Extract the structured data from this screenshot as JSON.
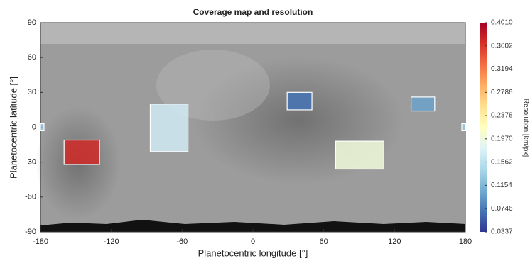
{
  "chart_data": {
    "type": "coverage-map",
    "title": "Coverage map and resolution",
    "xlabel": "Planetocentric longitude [°]",
    "ylabel": "Planetocentric latitude [°]",
    "xlim": [
      -180,
      180
    ],
    "xticks": [
      -180,
      -120,
      -60,
      0,
      60,
      120,
      180
    ],
    "ylim": [
      -90,
      90
    ],
    "yticks": [
      -90,
      -60,
      -30,
      0,
      30,
      60,
      90
    ],
    "colorbar": {
      "label": "Resolution [km/px]",
      "clim": [
        0.0337,
        0.401
      ],
      "ticks": [
        {
          "value": 0.401,
          "label": "0.4010"
        },
        0.3602,
        0.3194,
        0.2786,
        0.2378,
        {
          "value": 0.197,
          "label": "0.1970"
        },
        0.1562,
        0.1154,
        0.0746,
        0.0337
      ],
      "colormap": [
        "#313695",
        "#4575b4",
        "#74add1",
        "#abd9e9",
        "#e0f3f8",
        "#ffffbf",
        "#fee090",
        "#fdae61",
        "#f46d43",
        "#d73027",
        "#a50026"
      ]
    },
    "regions": [
      {
        "lon": [
          -160,
          -130
        ],
        "lat": [
          -11,
          -32
        ],
        "resolution": 0.37
      },
      {
        "lon": [
          -87,
          -55
        ],
        "lat": [
          20,
          -21
        ],
        "resolution": 0.17
      },
      {
        "lon": [
          29,
          50
        ],
        "lat": [
          30,
          15
        ],
        "resolution": 0.07
      },
      {
        "lon": [
          134,
          154
        ],
        "lat": [
          26,
          14
        ],
        "resolution": 0.1
      },
      {
        "lon": [
          70,
          111
        ],
        "lat": [
          -12,
          -36
        ],
        "resolution": 0.2
      },
      {
        "lon": [
          -180,
          -177
        ],
        "lat": [
          3,
          -3
        ],
        "resolution": 0.13
      },
      {
        "lon": [
          177,
          180
        ],
        "lat": [
          3,
          -3
        ],
        "resolution": 0.13
      }
    ]
  }
}
